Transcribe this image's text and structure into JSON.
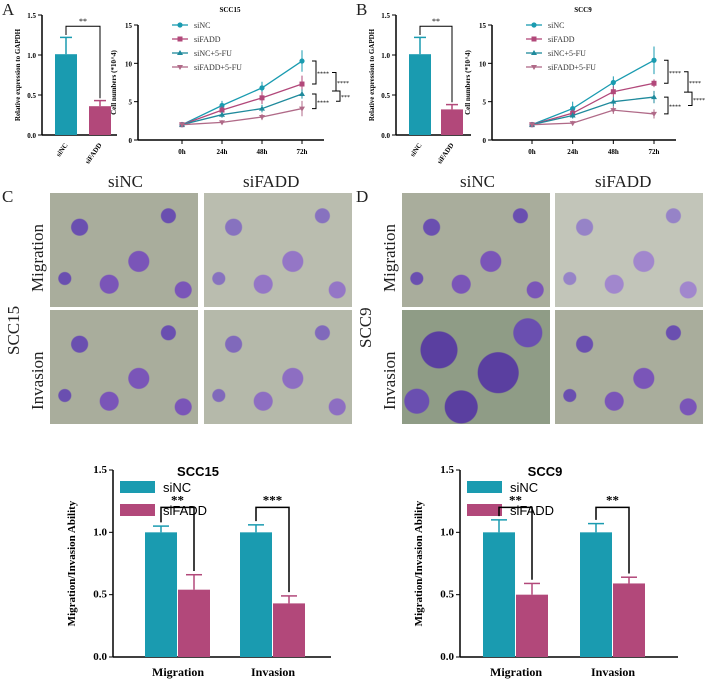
{
  "panels": {
    "A": "A",
    "B": "B",
    "C": "C",
    "D": "D"
  },
  "colors": {
    "siNC": "#1a9bb0",
    "siFADD": "#b2487a",
    "siNC5FU": "#1f8a9c",
    "siFADD5FU": "#b06a88"
  },
  "micro": {
    "C": {
      "cols": [
        "siNC",
        "siFADD"
      ],
      "rows": [
        "Migration",
        "Invasion"
      ],
      "cell": "SCC15"
    },
    "D": {
      "cols": [
        "siNC",
        "siFADD"
      ],
      "rows": [
        "Migration",
        "Invasion"
      ],
      "cell": "SCC9"
    }
  },
  "chart_data": [
    {
      "id": "A-bar",
      "type": "bar",
      "ylabel": "Relative expression to GAPDH",
      "categories": [
        "siNC",
        "siFADD"
      ],
      "values": [
        1.01,
        0.36
      ],
      "errors": [
        0.21,
        0.07
      ],
      "ylim": [
        0,
        1.5
      ],
      "yticks": [
        "0.0",
        "0.5",
        "1.0",
        "1.5"
      ],
      "significance": "**"
    },
    {
      "id": "A-line",
      "type": "line",
      "title": "SCC15",
      "ylabel": "Cell numbers (*10^4)",
      "x": [
        "0h",
        "24h",
        "48h",
        "72h"
      ],
      "ylim": [
        0,
        15
      ],
      "yticks": [
        "0",
        "5",
        "10",
        "15"
      ],
      "series": [
        {
          "name": "siNC",
          "values": [
            2,
            4.5,
            6.8,
            10.3
          ],
          "errors": [
            0.2,
            0.6,
            0.8,
            1.4
          ]
        },
        {
          "name": "siFADD",
          "values": [
            2,
            3.9,
            5.5,
            7.3
          ],
          "errors": [
            0.2,
            0.5,
            0.8,
            1.1
          ]
        },
        {
          "name": "siNC+5-FU",
          "values": [
            2,
            3.3,
            4.1,
            6.0
          ],
          "errors": [
            0.2,
            0.4,
            0.5,
            0.6
          ]
        },
        {
          "name": "siFADD+5-FU",
          "values": [
            2,
            2.3,
            3.0,
            4.1
          ],
          "errors": [
            0.2,
            0.3,
            0.4,
            1.0
          ]
        }
      ],
      "significance": [
        "****",
        "****",
        "****",
        "***"
      ]
    },
    {
      "id": "B-bar",
      "type": "bar",
      "ylabel": "Relative expression to GAPDH",
      "categories": [
        "siNC",
        "siFADD"
      ],
      "values": [
        1.01,
        0.32
      ],
      "errors": [
        0.21,
        0.06
      ],
      "ylim": [
        0,
        1.5
      ],
      "yticks": [
        "0.0",
        "0.5",
        "1.0",
        "1.5"
      ],
      "significance": "**"
    },
    {
      "id": "B-line",
      "type": "line",
      "title": "SCC9",
      "ylabel": "Cell numbers (*10^4)",
      "x": [
        "0h",
        "24h",
        "48h",
        "72h"
      ],
      "ylim": [
        0,
        15
      ],
      "yticks": [
        "0",
        "5",
        "10",
        "15"
      ],
      "series": [
        {
          "name": "siNC",
          "values": [
            2,
            4.1,
            7.5,
            10.4
          ],
          "errors": [
            0.2,
            0.9,
            0.8,
            1.8
          ]
        },
        {
          "name": "siFADD",
          "values": [
            2,
            3.5,
            6.3,
            7.4
          ],
          "errors": [
            0.2,
            0.5,
            0.7,
            0.5
          ]
        },
        {
          "name": "siNC+5-FU",
          "values": [
            2,
            3.2,
            5.0,
            5.6
          ],
          "errors": [
            0.2,
            0.4,
            0.6,
            0.8
          ]
        },
        {
          "name": "siFADD+5-FU",
          "values": [
            2,
            2.2,
            3.9,
            3.4
          ],
          "errors": [
            0.2,
            0.3,
            0.5,
            0.6
          ]
        }
      ],
      "significance": [
        "****",
        "****",
        "****",
        "****"
      ]
    },
    {
      "id": "C-bar",
      "type": "bar",
      "title": "SCC15",
      "ylabel": "Migration/Invasion Ability",
      "categories": [
        "Migration",
        "Invasion"
      ],
      "legend": [
        "siNC",
        "siFADD"
      ],
      "series": [
        {
          "name": "siNC",
          "values": [
            1.0,
            1.0
          ],
          "errors": [
            0.05,
            0.06
          ]
        },
        {
          "name": "siFADD",
          "values": [
            0.54,
            0.43
          ],
          "errors": [
            0.12,
            0.06
          ]
        }
      ],
      "ylim": [
        0,
        1.5
      ],
      "yticks": [
        "0.0",
        "0.5",
        "1.0",
        "1.5"
      ],
      "significance": [
        "**",
        "***"
      ]
    },
    {
      "id": "D-bar",
      "type": "bar",
      "title": "SCC9",
      "ylabel": "Migration/Invasion Ability",
      "categories": [
        "Migration",
        "Invasion"
      ],
      "legend": [
        "siNC",
        "siFADD"
      ],
      "series": [
        {
          "name": "siNC",
          "values": [
            1.0,
            1.0
          ],
          "errors": [
            0.1,
            0.07
          ]
        },
        {
          "name": "siFADD",
          "values": [
            0.5,
            0.59
          ],
          "errors": [
            0.09,
            0.05
          ]
        }
      ],
      "ylim": [
        0,
        1.5
      ],
      "yticks": [
        "0.0",
        "0.5",
        "1.0",
        "1.5"
      ],
      "significance": [
        "**",
        "**"
      ]
    }
  ]
}
